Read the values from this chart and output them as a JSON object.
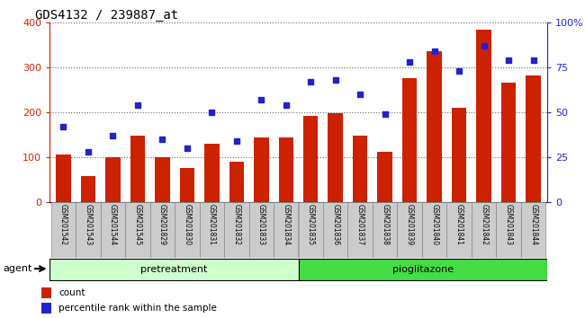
{
  "title": "GDS4132 / 239887_at",
  "samples": [
    "GSM201542",
    "GSM201543",
    "GSM201544",
    "GSM201545",
    "GSM201829",
    "GSM201830",
    "GSM201831",
    "GSM201832",
    "GSM201833",
    "GSM201834",
    "GSM201835",
    "GSM201836",
    "GSM201837",
    "GSM201838",
    "GSM201839",
    "GSM201840",
    "GSM201841",
    "GSM201842",
    "GSM201843",
    "GSM201844"
  ],
  "counts": [
    105,
    57,
    100,
    148,
    100,
    75,
    130,
    90,
    143,
    143,
    192,
    197,
    148,
    112,
    275,
    335,
    210,
    383,
    265,
    282
  ],
  "percentile_ranks": [
    42,
    28,
    37,
    54,
    35,
    30,
    50,
    34,
    57,
    54,
    67,
    68,
    60,
    49,
    78,
    84,
    73,
    87,
    79,
    79
  ],
  "pretreatment_count": 10,
  "pioglitazone_count": 10,
  "bar_color": "#cc2200",
  "dot_color": "#2222cc",
  "left_axis_color": "#cc2200",
  "right_axis_color": "#2222cc",
  "ylim_left": [
    0,
    400
  ],
  "ylim_right": [
    0,
    100
  ],
  "yticks_left": [
    0,
    100,
    200,
    300,
    400
  ],
  "yticks_right": [
    0,
    25,
    50,
    75,
    100
  ],
  "ytick_labels_right": [
    "0",
    "25",
    "50",
    "75",
    "100%"
  ],
  "pretreatment_color": "#ccffcc",
  "pioglitazone_color": "#44dd44",
  "agent_label": "agent",
  "legend_count_label": "count",
  "legend_pct_label": "percentile rank within the sample",
  "xlabel_area_bg": "#cccccc",
  "title_fontsize": 10,
  "axis_fontsize": 8,
  "bar_width": 0.6
}
